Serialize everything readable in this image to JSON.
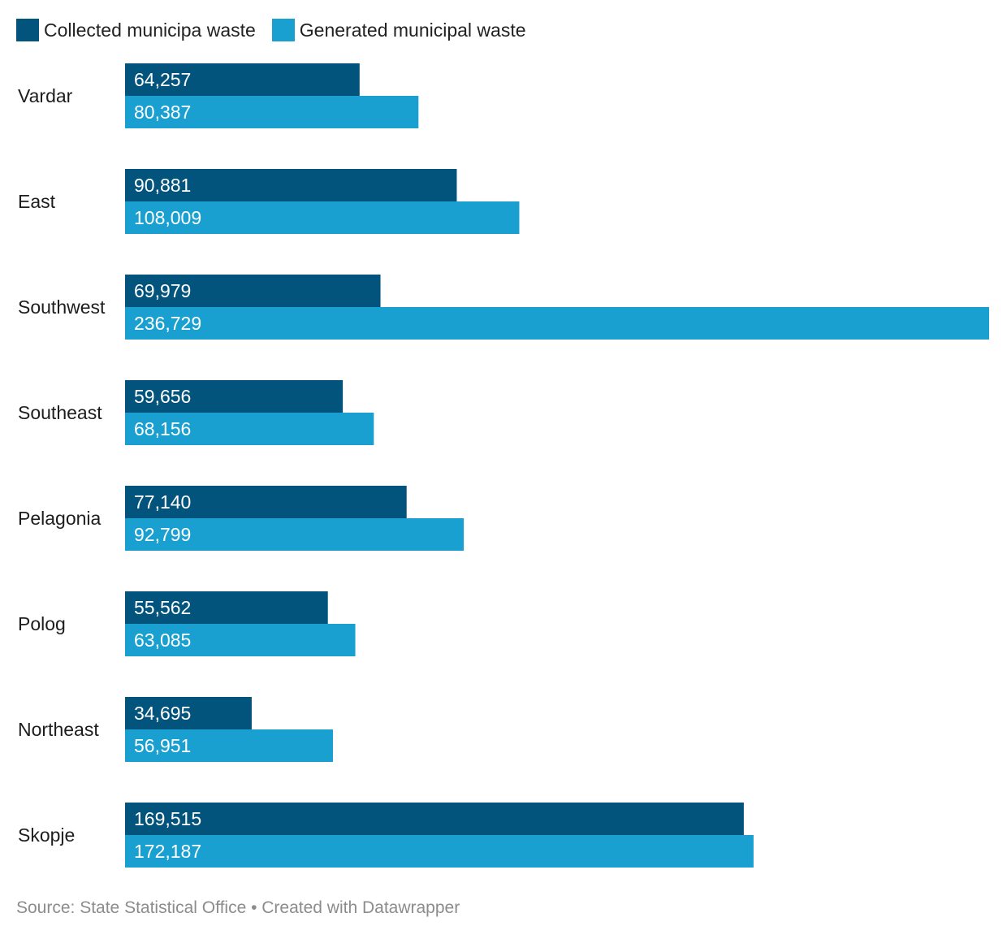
{
  "legend": {
    "items": [
      {
        "label": "Collected municipa waste",
        "color": "#03547c"
      },
      {
        "label": "Generated municipal waste",
        "color": "#19a0d0"
      }
    ]
  },
  "chart_data": {
    "type": "bar",
    "orientation": "horizontal",
    "categories": [
      "Vardar",
      "East",
      "Southwest",
      "Southeast",
      "Pelagonia",
      "Polog",
      "Northeast",
      "Skopje"
    ],
    "series": [
      {
        "name": "Collected municipa waste",
        "color": "#03547c",
        "values": [
          64257,
          90881,
          69979,
          59656,
          77140,
          55562,
          34695,
          169515
        ],
        "labels": [
          "64,257",
          "90,881",
          "69,979",
          "59,656",
          "77,140",
          "55,562",
          "34,695",
          "169,515"
        ]
      },
      {
        "name": "Generated municipal waste",
        "color": "#19a0d0",
        "values": [
          80387,
          108009,
          236729,
          68156,
          92799,
          63085,
          56951,
          172187
        ],
        "labels": [
          "80,387",
          "108,009",
          "236,729",
          "68,156",
          "92,799",
          "63,085",
          "56,951",
          "172,187"
        ]
      }
    ],
    "xlim": [
      0,
      236729
    ],
    "grid": false,
    "legend_position": "top-left",
    "value_labels": "inside-start"
  },
  "footer": {
    "text": "Source: State Statistical Office • Created with Datawrapper"
  }
}
